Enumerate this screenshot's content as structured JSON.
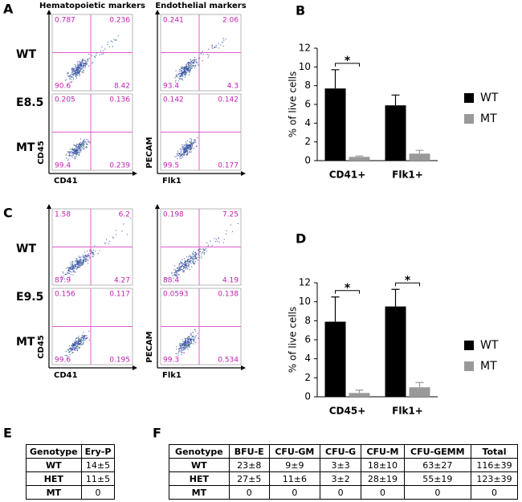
{
  "panels": {
    "a": "A",
    "b": "B",
    "c": "C",
    "d": "D",
    "e": "E",
    "f": "F"
  },
  "flow": {
    "column_titles": [
      "Hematopoietic markers",
      "Endothelial markers"
    ],
    "x_labels": [
      "CD41",
      "Flk1"
    ],
    "y_labels": [
      "CD45",
      "PECAM"
    ],
    "sections": [
      {
        "stage": "E8.5",
        "rows": [
          {
            "genotype": "WT",
            "plots": [
              [
                0.787,
                0.236,
                90.6,
                8.42
              ],
              [
                0.241,
                2.06,
                93.4,
                4.3
              ]
            ]
          },
          {
            "genotype": "MT",
            "plots": [
              [
                0.205,
                0.136,
                99.4,
                0.239
              ],
              [
                0.142,
                0.142,
                99.5,
                0.177
              ]
            ]
          }
        ]
      },
      {
        "stage": "E9.5",
        "rows": [
          {
            "genotype": "WT",
            "plots": [
              [
                1.58,
                6.2,
                87.9,
                4.27
              ],
              [
                0.198,
                7.25,
                88.4,
                4.19
              ]
            ]
          },
          {
            "genotype": "MT",
            "plots": [
              [
                0.156,
                0.117,
                99.6,
                0.195
              ],
              [
                0.0593,
                0.138,
                99.3,
                0.534
              ]
            ]
          }
        ]
      }
    ]
  },
  "chart_data": [
    {
      "type": "bar",
      "y_label": "% of live cells",
      "categories": [
        "CD41+",
        "Flk1+"
      ],
      "series": [
        {
          "name": "WT",
          "color": "#000000",
          "values": [
            7.7,
            5.9
          ],
          "errors": [
            2.0,
            1.1
          ]
        },
        {
          "name": "MT",
          "color": "#999999",
          "values": [
            0.4,
            0.75
          ],
          "errors": [
            0.1,
            0.35
          ]
        }
      ],
      "significance": [
        "*",
        null
      ],
      "ylim": [
        0,
        12
      ],
      "yticks": [
        0,
        2,
        4,
        6,
        8,
        10,
        12
      ],
      "legend": "right"
    },
    {
      "type": "bar",
      "y_label": "% of live cells",
      "categories": [
        "CD45+",
        "Flk1+"
      ],
      "series": [
        {
          "name": "WT",
          "color": "#000000",
          "values": [
            7.9,
            9.5
          ],
          "errors": [
            2.6,
            1.8
          ]
        },
        {
          "name": "MT",
          "color": "#999999",
          "values": [
            0.4,
            1.0
          ],
          "errors": [
            0.3,
            0.5
          ]
        }
      ],
      "significance": [
        "*",
        "*"
      ],
      "ylim": [
        0,
        12
      ],
      "yticks": [
        0,
        2,
        4,
        6,
        8,
        10,
        12
      ],
      "legend": "right"
    }
  ],
  "tables": [
    {
      "rows": [
        [
          "Genotype",
          "Ery-P"
        ],
        [
          "WT",
          "14±5"
        ],
        [
          "HET",
          "11±5"
        ],
        [
          "MT",
          0
        ]
      ]
    },
    {
      "rows": [
        [
          "Genotype",
          "BFU-E",
          "CFU-GM",
          "CFU-G",
          "CFU-M",
          "CFU-GEMM",
          "Total"
        ],
        [
          "WT",
          "23±8",
          "9±9",
          "3±3",
          "18±10",
          "63±27",
          "116±39"
        ],
        [
          "HET",
          "27±5",
          "11±6",
          "3±2",
          "28±19",
          "55±19",
          "123±39"
        ],
        [
          "MT",
          0,
          0,
          0,
          0,
          0,
          0
        ]
      ]
    }
  ]
}
